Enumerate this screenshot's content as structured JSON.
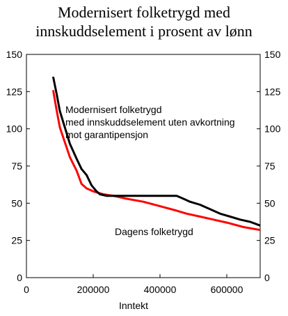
{
  "chart_data": {
    "type": "line",
    "title_lines": [
      "Modernisert folketrygd med",
      "innskuddselement i prosent av lønn"
    ],
    "xlabel": "Inntekt",
    "xlim": [
      0,
      700000
    ],
    "ylim": [
      0,
      150
    ],
    "x_ticks": [
      "0",
      "200000",
      "400000",
      "600000"
    ],
    "y_ticks": [
      "0",
      "25",
      "50",
      "75",
      "100",
      "125",
      "150"
    ],
    "grid": false,
    "series": [
      {
        "name": "Modernisert folketrygd med innskuddselement uten avkortning mot garantipensjon",
        "label_lines": [
          "Modernisert folketrygd",
          "med innskuddselement uten avkortning",
          "mot garantipensjon"
        ],
        "color": "#000000",
        "points": [
          [
            80000,
            135
          ],
          [
            90000,
            124
          ],
          [
            100000,
            112
          ],
          [
            115000,
            101
          ],
          [
            130000,
            90
          ],
          [
            150000,
            80
          ],
          [
            165000,
            73
          ],
          [
            180000,
            69
          ],
          [
            195000,
            62
          ],
          [
            210000,
            58
          ],
          [
            220000,
            56
          ],
          [
            240000,
            55
          ],
          [
            300000,
            55
          ],
          [
            350000,
            55
          ],
          [
            400000,
            55
          ],
          [
            450000,
            55
          ],
          [
            470000,
            53
          ],
          [
            490000,
            51
          ],
          [
            520000,
            49
          ],
          [
            550000,
            46
          ],
          [
            580000,
            43
          ],
          [
            610000,
            41
          ],
          [
            640000,
            39
          ],
          [
            670000,
            37.5
          ],
          [
            700000,
            35
          ]
        ]
      },
      {
        "name": "Dagens folketrygd",
        "label_lines": [
          "Dagens folketrygd"
        ],
        "color": "#ff0000",
        "points": [
          [
            80000,
            126
          ],
          [
            90000,
            113
          ],
          [
            100000,
            101
          ],
          [
            115000,
            91
          ],
          [
            130000,
            81
          ],
          [
            150000,
            72
          ],
          [
            165000,
            63
          ],
          [
            180000,
            60
          ],
          [
            200000,
            58
          ],
          [
            230000,
            56
          ],
          [
            260000,
            55
          ],
          [
            300000,
            53
          ],
          [
            350000,
            51
          ],
          [
            400000,
            48
          ],
          [
            450000,
            45
          ],
          [
            480000,
            43
          ],
          [
            520000,
            41
          ],
          [
            560000,
            39
          ],
          [
            600000,
            37
          ],
          [
            650000,
            34
          ],
          [
            700000,
            32
          ]
        ]
      }
    ]
  }
}
